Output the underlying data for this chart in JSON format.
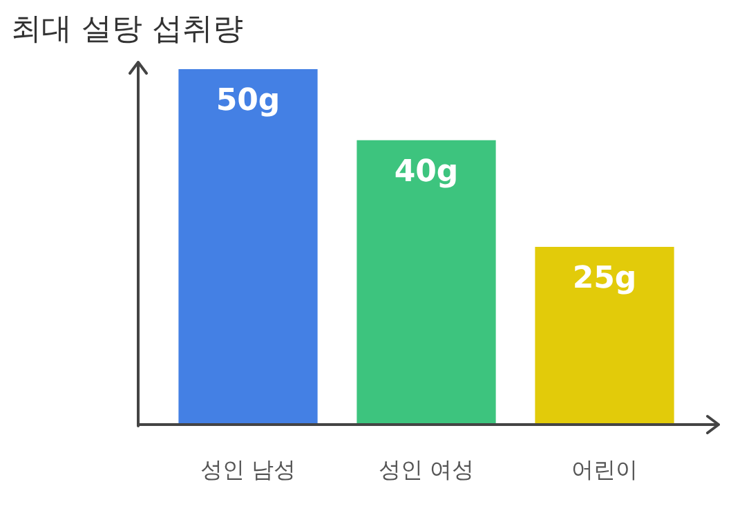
{
  "chart_data": {
    "type": "bar",
    "title": "최대 설탕 섭취량",
    "categories": [
      "성인 남성",
      "성인 여성",
      "어린이"
    ],
    "values": [
      50,
      40,
      25
    ],
    "colors": [
      "#4480e4",
      "#3dc47e",
      "#e2cb0a"
    ],
    "value_labels": [
      "50g",
      "40g",
      "25g"
    ],
    "grid": false,
    "legend": false
  }
}
